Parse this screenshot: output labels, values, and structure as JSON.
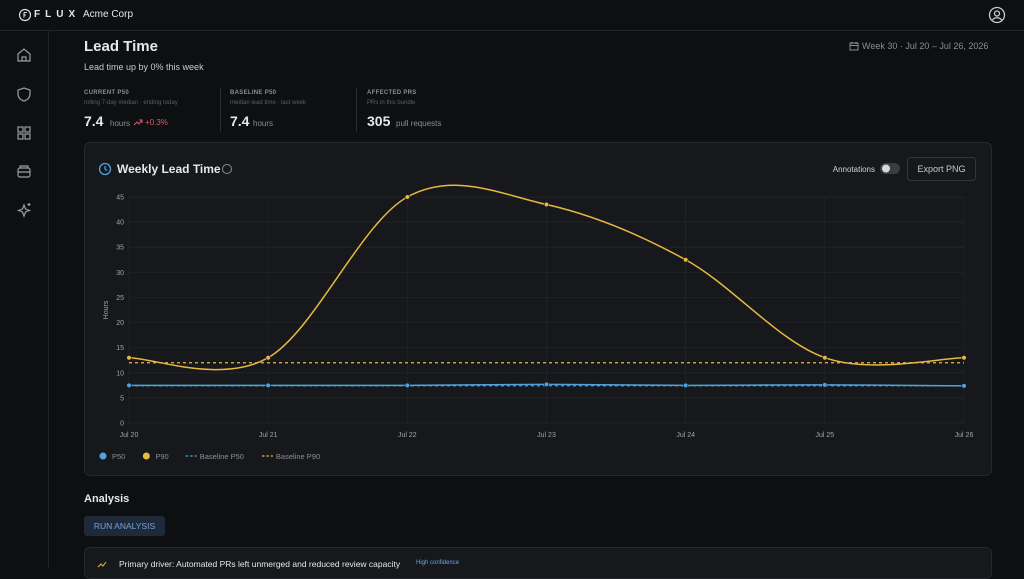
{
  "header": {
    "brand": "FLUX",
    "org": "Acme Corp"
  },
  "page": {
    "title": "Lead Time",
    "subtitle": "Lead time up by 0% this week",
    "date_range": "Week 30 · Jul 20 – Jul 26, 2026"
  },
  "stats": [
    {
      "label": "CURRENT P50",
      "sub": "rolling 7-day median · ending today",
      "value": 7.4,
      "unit": "hours",
      "delta": "+0.3%"
    },
    {
      "label": "BASELINE P50",
      "sub": "median lead time · last week",
      "value": 7.4,
      "unit": "hours"
    },
    {
      "label": "AFFECTED PRS",
      "sub": "PRs in this bundle",
      "value": 305,
      "unit": "pull requests"
    }
  ],
  "chart_data": {
    "type": "line",
    "title": "Weekly Lead Time",
    "y_label": "Hours",
    "annotations_label": "Annotations",
    "export_label": "Export PNG",
    "categories": [
      "Jul 20",
      "Jul 21",
      "Jul 22",
      "Jul 23",
      "Jul 24",
      "Jul 25",
      "Jul 26"
    ],
    "series": [
      {
        "name": "P50",
        "color": "#4fa3e0",
        "values": [
          7.5,
          7.5,
          7.5,
          7.7,
          7.5,
          7.6,
          7.4
        ]
      },
      {
        "name": "P90",
        "color": "#e8b93e",
        "values": [
          13,
          13,
          45,
          43.5,
          32.5,
          13,
          13
        ]
      }
    ],
    "baselines": [
      {
        "name": "Baseline P50",
        "color": "#4fa3e0",
        "value": 7.4
      },
      {
        "name": "Baseline P90",
        "color": "#e8b93e",
        "value": 12
      }
    ],
    "ylim": [
      0,
      45
    ],
    "yticks": [
      0,
      5,
      10,
      15,
      20,
      25,
      30,
      35,
      40,
      45
    ],
    "grid": true
  },
  "analysis": {
    "title": "Analysis",
    "button": "RUN ANALYSIS",
    "finding": "Primary driver: Automated PRs left unmerged and reduced review capacity",
    "confidence": "High confidence"
  }
}
